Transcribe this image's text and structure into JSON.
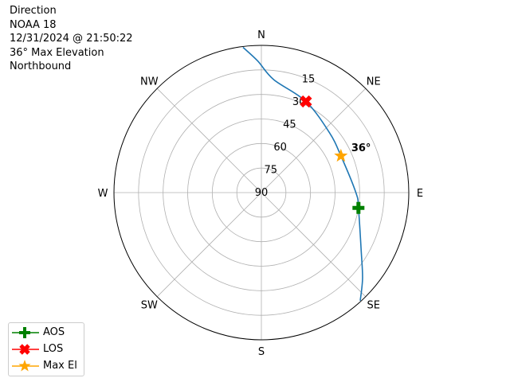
{
  "title_lines": [
    "Direction",
    "NOAA 18",
    "12/31/2024 @ 21:50:22",
    "36° Max Elevation",
    "Northbound"
  ],
  "chart_data": {
    "type": "polar",
    "theta_direction": "clockwise",
    "theta_zero": "N",
    "radial_axis": "elevation (degrees, 90 at center, 0 at edge)",
    "rlim": [
      90,
      0
    ],
    "direction_labels": [
      {
        "label": "N",
        "az": 0
      },
      {
        "label": "NE",
        "az": 45
      },
      {
        "label": "E",
        "az": 90
      },
      {
        "label": "SE",
        "az": 135
      },
      {
        "label": "S",
        "az": 180
      },
      {
        "label": "SW",
        "az": 225
      },
      {
        "label": "W",
        "az": 270
      },
      {
        "label": "NW",
        "az": 315
      }
    ],
    "radial_ticks": [
      15,
      30,
      45,
      60,
      75,
      90
    ],
    "radial_tick_labels": [
      "15",
      "30",
      "45",
      "60",
      "75",
      "90"
    ],
    "grid": true,
    "track": {
      "color": "#1f77b4",
      "points": [
        {
          "az": 352.8,
          "el": 0.5
        },
        {
          "az": 358.4,
          "el": 9.5
        },
        {
          "az": 6.2,
          "el": 20.5
        },
        {
          "az": 26,
          "el": 28
        },
        {
          "az": 48.6,
          "el": 34.6
        },
        {
          "az": 65.2,
          "el": 36.5
        },
        {
          "az": 90,
          "el": 32.3
        },
        {
          "az": 99,
          "el": 30
        },
        {
          "az": 120.8,
          "el": 19
        },
        {
          "az": 130.4,
          "el": 8.9
        },
        {
          "az": 137.6,
          "el": 0.5
        }
      ]
    },
    "markers": [
      {
        "name": "AOS",
        "az": 99,
        "el": 30,
        "color": "#008000",
        "shape": "plus"
      },
      {
        "name": "LOS",
        "az": 26,
        "el": 28,
        "color": "#ff0000",
        "shape": "x"
      },
      {
        "name": "Max El",
        "az": 65.2,
        "el": 36.5,
        "color": "#ffa500",
        "shape": "star"
      }
    ],
    "annotation": {
      "text": "36°",
      "az": 65.2,
      "el": 36.5
    },
    "legend": {
      "placement": "lower-left",
      "entries": [
        "AOS",
        "LOS",
        "Max El"
      ]
    }
  }
}
